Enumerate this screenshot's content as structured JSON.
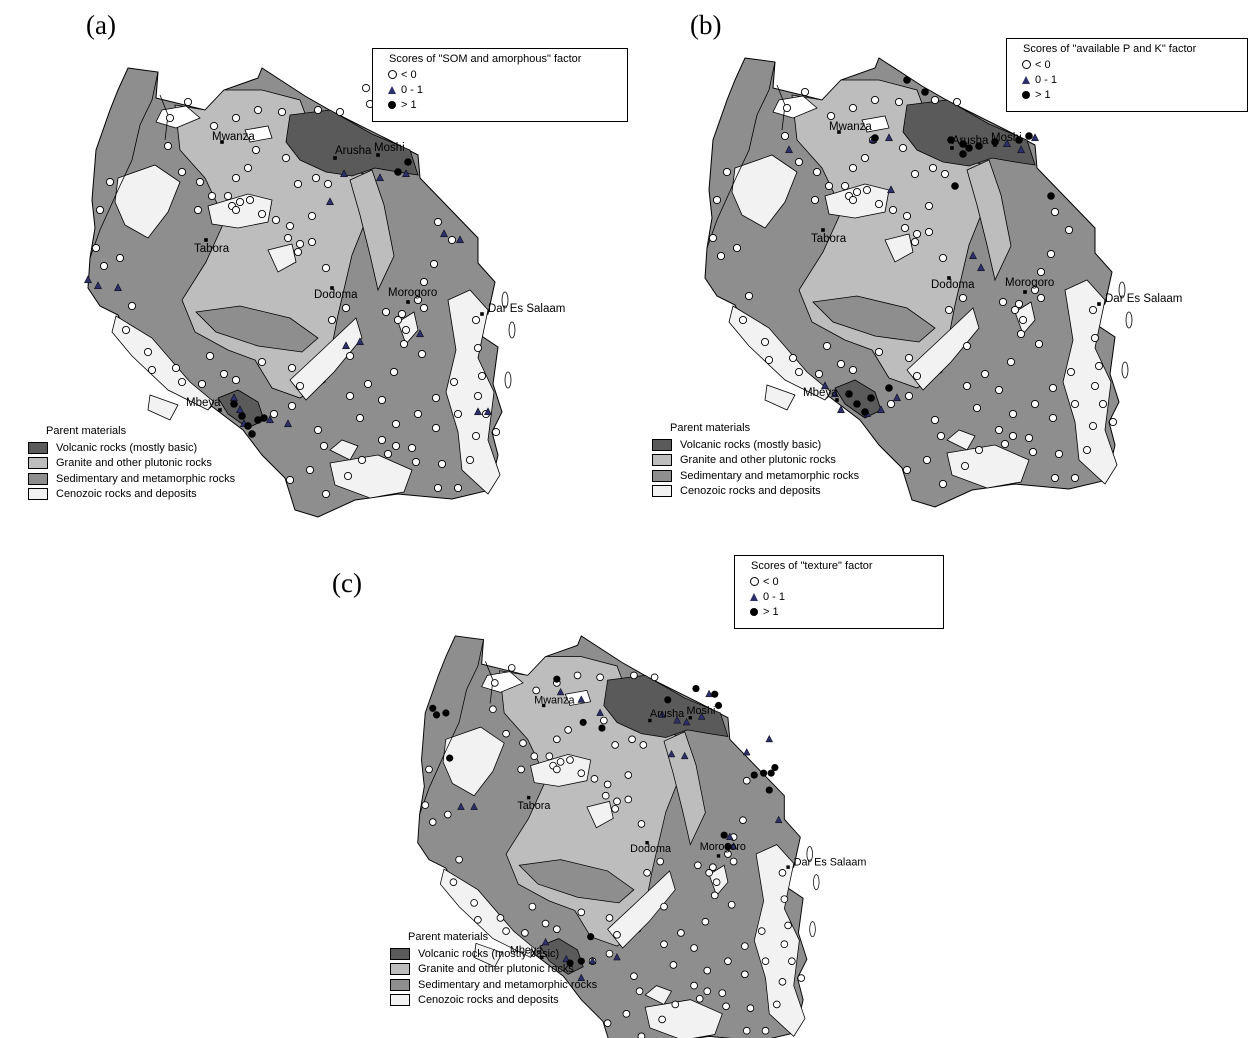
{
  "panels": [
    {
      "label": "(a)",
      "score_legend": {
        "title": "Scores of \"SOM and amorphous\" factor",
        "items": [
          {
            "symbol": "open-circle",
            "label": "< 0"
          },
          {
            "symbol": "triangle",
            "label": "0 - 1"
          },
          {
            "symbol": "filled-circle",
            "label": "> 1"
          }
        ]
      },
      "cities": [
        {
          "name": "Mwanza"
        },
        {
          "name": "Arusha"
        },
        {
          "name": "Moshi"
        },
        {
          "name": "Tabora"
        },
        {
          "name": "Dodoma"
        },
        {
          "name": "Morogoro"
        },
        {
          "name": "Dar Es Salaam"
        },
        {
          "name": "Mbeya"
        }
      ]
    },
    {
      "label": "(b)",
      "score_legend": {
        "title": "Scores of \"available P and K\" factor",
        "items": [
          {
            "symbol": "open-circle",
            "label": "< 0"
          },
          {
            "symbol": "triangle",
            "label": "0 - 1"
          },
          {
            "symbol": "filled-circle",
            "label": "> 1"
          }
        ]
      },
      "cities": [
        {
          "name": "Mwanza"
        },
        {
          "name": "Arusha"
        },
        {
          "name": "Moshi"
        },
        {
          "name": "Tabora"
        },
        {
          "name": "Dodoma"
        },
        {
          "name": "Morogoro"
        },
        {
          "name": "Dar Es Salaam"
        },
        {
          "name": "Mbeya"
        }
      ]
    },
    {
      "label": "(c)",
      "score_legend": {
        "title": "Scores of \"texture\" factor",
        "items": [
          {
            "symbol": "open-circle",
            "label": "< 0"
          },
          {
            "symbol": "triangle",
            "label": "0 - 1"
          },
          {
            "symbol": "filled-circle",
            "label": "> 1"
          }
        ]
      },
      "cities": [
        {
          "name": "Mwanza"
        },
        {
          "name": "Arusha"
        },
        {
          "name": "Moshi"
        },
        {
          "name": "Tabora"
        },
        {
          "name": "Dodoma"
        },
        {
          "name": "Morogoro"
        },
        {
          "name": "Dar Es Salaam"
        },
        {
          "name": "Mbeya"
        }
      ]
    }
  ],
  "parent_materials": {
    "title": "Parent materials",
    "items": [
      {
        "label": "Volcanic rocks (mostly basic)",
        "color": "#5a5a5a"
      },
      {
        "label": "Granite and other plutonic rocks",
        "color": "#bdbdbd"
      },
      {
        "label": "Sedimentary and metamorphic rocks",
        "color": "#8e8e8e"
      },
      {
        "label": "Cenozoic rocks and deposits",
        "color": "#f2f2f2"
      }
    ]
  },
  "colors": {
    "volcanic": "#5a5a5a",
    "granite": "#bdbdbd",
    "sedimentary": "#8e8e8e",
    "cenozoic": "#f2f2f2",
    "triangle": "#2d2f6a"
  }
}
